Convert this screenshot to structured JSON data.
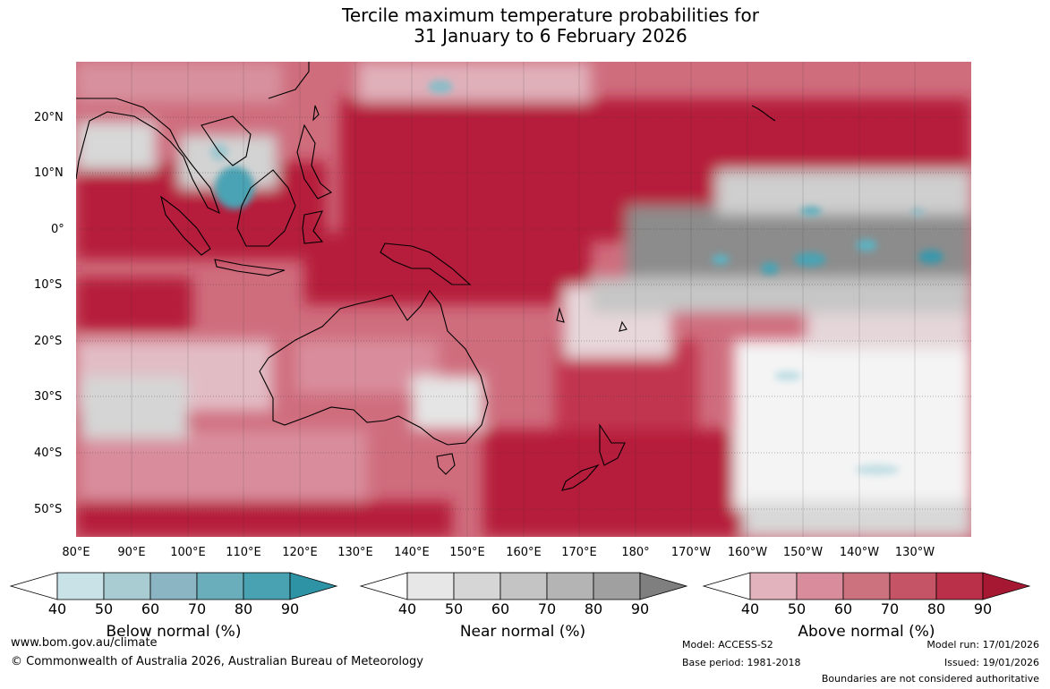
{
  "title": {
    "line1": "Tercile maximum temperature probabilities for",
    "line2": "31 January to 6 February 2026"
  },
  "map": {
    "latitude_labels": [
      "20°N",
      "10°N",
      "0°",
      "10°S",
      "20°S",
      "30°S",
      "40°S",
      "50°S"
    ],
    "longitude_labels": [
      "80°E",
      "90°E",
      "100°E",
      "110°E",
      "120°E",
      "130°E",
      "140°E",
      "150°E",
      "160°E",
      "170°E",
      "180°",
      "170°W",
      "160°W",
      "150°W",
      "140°W",
      "130°W"
    ]
  },
  "colorbars": [
    {
      "name": "below",
      "title": "Below normal (%)",
      "ticks": [
        "40",
        "50",
        "60",
        "70",
        "80",
        "90"
      ],
      "colors": [
        "#ffffff",
        "#c9e2e8",
        "#a8ccd2",
        "#8cb5c4",
        "#6aaebb",
        "#48a2b2",
        "#2e93a5"
      ]
    },
    {
      "name": "near",
      "title": "Near normal (%)",
      "ticks": [
        "40",
        "50",
        "60",
        "70",
        "80",
        "90"
      ],
      "colors": [
        "#ffffff",
        "#e7e7e7",
        "#d6d6d6",
        "#c4c4c4",
        "#b4b4b4",
        "#a0a0a0",
        "#7f7f7f"
      ]
    },
    {
      "name": "above",
      "title": "Above normal (%)",
      "ticks": [
        "40",
        "50",
        "60",
        "70",
        "80",
        "90"
      ],
      "colors": [
        "#ffffff",
        "#e2b3bd",
        "#d98d9c",
        "#cc717e",
        "#c55566",
        "#b93048",
        "#a61832"
      ]
    }
  ],
  "footer": {
    "website": "www.bom.gov.au/climate",
    "copyright": "© Commonwealth of Australia 2026, Australian Bureau of Meteorology",
    "model": "Model: ACCESS-S2",
    "base_period": "Base period: 1981-2018",
    "model_run": "Model run: 17/01/2026",
    "issued": "Issued: 19/01/2026",
    "disclaimer": "Boundaries are not considered authoritative"
  }
}
